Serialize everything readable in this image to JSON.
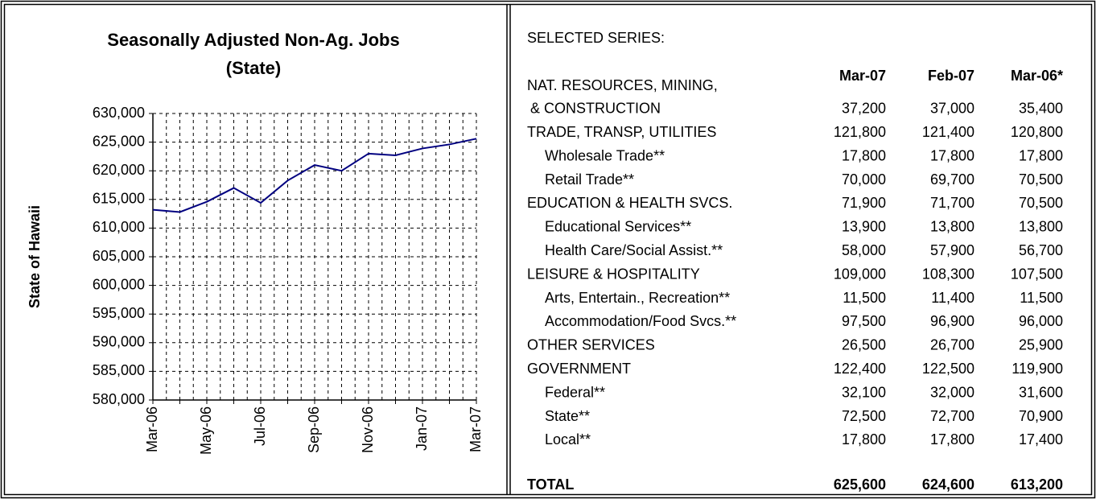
{
  "chart_data": {
    "type": "line",
    "title": "Seasonally Adjusted Non-Ag. Jobs",
    "subtitle": "(State)",
    "y_label": "State of Hawaii",
    "categories": [
      "Mar-06",
      null,
      "May-06",
      null,
      "Jul-06",
      null,
      "Sep-06",
      null,
      "Nov-06",
      null,
      "Jan-07",
      null,
      "Mar-07"
    ],
    "values": [
      613200,
      612800,
      614600,
      617000,
      614400,
      618300,
      621000,
      620000,
      623000,
      622700,
      623900,
      624600,
      625600
    ],
    "color": "#000080",
    "grid": true,
    "ylim": [
      580000,
      630000
    ],
    "yticks": [
      {
        "value": 580000,
        "label": "580,000"
      },
      {
        "value": 585000,
        "label": "585,000"
      },
      {
        "value": 590000,
        "label": "590,000"
      },
      {
        "value": 595000,
        "label": "595,000"
      },
      {
        "value": 600000,
        "label": "600,000"
      },
      {
        "value": 605000,
        "label": "605,000"
      },
      {
        "value": 610000,
        "label": "610,000"
      },
      {
        "value": 615000,
        "label": "615,000"
      },
      {
        "value": 620000,
        "label": "620,000"
      },
      {
        "value": 625000,
        "label": "625,000"
      },
      {
        "value": 630000,
        "label": "630,000"
      }
    ]
  },
  "table": {
    "heading": "SELECTED SERIES:",
    "columns": [
      "Mar-07",
      "Feb-07",
      "Mar-06*"
    ],
    "groups": [
      {
        "label": [
          "NAT. RESOURCES, MINING,",
          "& CONSTRUCTION"
        ],
        "values": [
          "37,200",
          "37,000",
          "35,400"
        ],
        "items": []
      },
      {
        "label": "TRADE, TRANSP, UTILITIES",
        "values": [
          "121,800",
          "121,400",
          "120,800"
        ],
        "items": [
          {
            "label": "Wholesale Trade**",
            "values": [
              "17,800",
              "17,800",
              "17,800"
            ]
          },
          {
            "label": "Retail Trade**",
            "values": [
              "70,000",
              "69,700",
              "70,500"
            ]
          }
        ]
      },
      {
        "label": "EDUCATION & HEALTH SVCS.",
        "values": [
          "71,900",
          "71,700",
          "70,500"
        ],
        "items": [
          {
            "label": "Educational Services**",
            "values": [
              "13,900",
              "13,800",
              "13,800"
            ]
          },
          {
            "label": "Health Care/Social Assist.**",
            "values": [
              "58,000",
              "57,900",
              "56,700"
            ]
          }
        ]
      },
      {
        "label": "LEISURE & HOSPITALITY",
        "values": [
          "109,000",
          "108,300",
          "107,500"
        ],
        "items": [
          {
            "label": "Arts, Entertain., Recreation**",
            "values": [
              "11,500",
              "11,400",
              "11,500"
            ]
          },
          {
            "label": "Accommodation/Food Svcs.**",
            "values": [
              "97,500",
              "96,900",
              "96,000"
            ]
          }
        ]
      },
      {
        "label": "OTHER SERVICES",
        "values": [
          "26,500",
          "26,700",
          "25,900"
        ],
        "items": []
      },
      {
        "label": "GOVERNMENT",
        "values": [
          "122,400",
          "122,500",
          "119,900"
        ],
        "items": [
          {
            "label": "Federal**",
            "values": [
              "32,100",
              "32,000",
              "31,600"
            ]
          },
          {
            "label": "State**",
            "values": [
              "72,500",
              "72,700",
              "70,900"
            ]
          },
          {
            "label": "Local**",
            "values": [
              "17,800",
              "17,800",
              "17,400"
            ]
          }
        ]
      }
    ],
    "total": {
      "label": "TOTAL",
      "values": [
        "625,600",
        "624,600",
        "613,200"
      ]
    }
  }
}
